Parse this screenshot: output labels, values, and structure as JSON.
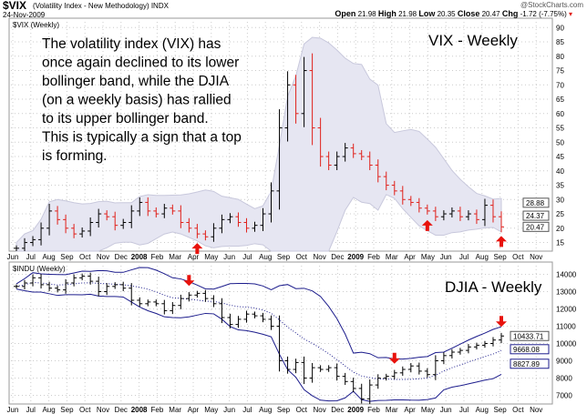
{
  "header": {
    "symbol": "$VIX",
    "name": "(Volatility Index - New Methodology) INDX",
    "date": "24-Nov-2009",
    "brand": "@StockCharts.com",
    "open_label": "Open",
    "open": "21.98",
    "high_label": "High",
    "high": "21.98",
    "low_label": "Low",
    "low": "20.35",
    "close_label": "Close",
    "close": "20.47",
    "chg_label": "Chg",
    "chg": "-1.72 (-7.75%)"
  },
  "colors": {
    "up": "#000000",
    "down": "#e0201a",
    "band": "#1c1c8c",
    "band_fill": "#e6e6f2",
    "arrow": "#e8120c"
  },
  "chart_data": [
    {
      "type": "ohlc",
      "panel_label": "$VIX (Weekly)",
      "title": "VIX - Weekly",
      "ylim": [
        12,
        92
      ],
      "yticks": [
        15,
        20,
        25,
        30,
        35,
        40,
        45,
        50,
        55,
        60,
        65,
        70,
        75,
        80,
        85,
        90
      ],
      "tags": [
        "28.88",
        "24.37",
        "20.47"
      ],
      "tag_values": [
        28.88,
        24.37,
        20.47
      ],
      "annotation": "The volatility index (VIX) has once again declined to its lower bollinger band, while the DJIA (on a weekly basis) has rallied to its upper bollinger band. This is typically a sign that a top is forming.",
      "arrows_up_at_index": [
        22,
        50,
        59
      ],
      "closes": [
        13,
        15,
        16,
        20,
        26,
        23,
        20,
        18,
        19,
        22,
        25,
        24,
        21,
        22,
        26,
        29,
        26,
        25,
        27,
        26,
        22,
        20,
        18,
        17,
        20,
        23,
        24,
        22,
        20,
        21,
        25,
        33,
        55,
        70,
        60,
        75,
        55,
        45,
        42,
        45,
        48,
        46,
        45,
        42,
        38,
        35,
        33,
        30,
        29,
        27,
        26,
        24,
        25,
        26,
        24,
        25,
        23,
        28,
        24,
        20.47
      ]
    },
    {
      "type": "ohlc",
      "panel_label": "$INDU (Weekly)",
      "title": "DJIA - Weekly",
      "ylim": [
        6500,
        14500
      ],
      "yticks": [
        7000,
        8000,
        9000,
        10000,
        11000,
        12000,
        13000,
        14000
      ],
      "tags": [
        "10433.71",
        "9668.08",
        "8827.89"
      ],
      "tag_values": [
        10433.71,
        9668.08,
        8827.89
      ],
      "arrows_down_at_index": [
        21,
        46,
        59
      ],
      "closes": [
        13300,
        13500,
        13800,
        13400,
        13200,
        13100,
        13500,
        13800,
        13900,
        13600,
        13000,
        13300,
        13400,
        13200,
        12500,
        12300,
        12400,
        12300,
        11900,
        12200,
        12600,
        12800,
        12900,
        12600,
        12300,
        11500,
        11100,
        11400,
        11700,
        11600,
        11400,
        11000,
        9000,
        8500,
        8900,
        8000,
        8600,
        8500,
        8600,
        8100,
        7800,
        7400,
        6800,
        7600,
        8000,
        8100,
        8300,
        8500,
        8700,
        8400,
        8200,
        9000,
        9300,
        9500,
        9600,
        9800,
        9900,
        10000,
        10200,
        10433.71
      ]
    }
  ],
  "x_labels": [
    "Jun",
    "Jul",
    "Aug",
    "Sep",
    "Oct",
    "Nov",
    "Dec",
    "2008",
    "Feb",
    "Mar",
    "Apr",
    "May",
    "Jun",
    "Jul",
    "Aug",
    "Sep",
    "Oct",
    "Nov",
    "Dec",
    "2009",
    "Feb",
    "Mar",
    "Apr",
    "May",
    "Jun",
    "Jul",
    "Aug",
    "Sep",
    "Oct",
    "Nov"
  ]
}
